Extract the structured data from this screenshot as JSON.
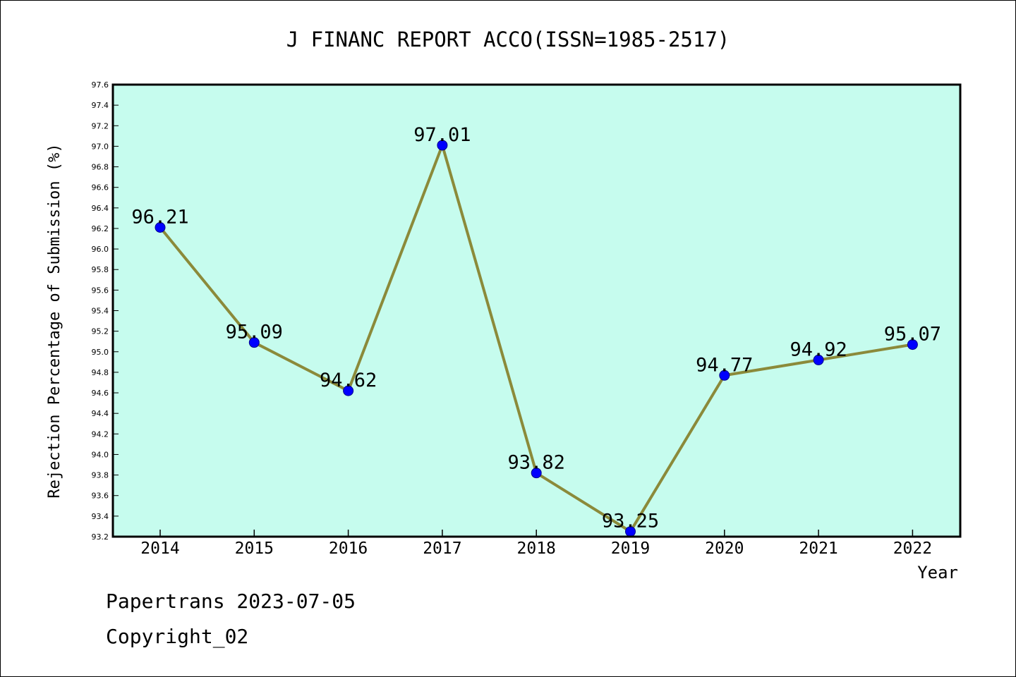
{
  "chart_data": {
    "type": "line",
    "title": "J FINANC REPORT ACCO(ISSN=1985-2517)",
    "xlabel": "Year",
    "ylabel": "Rejection Percentage of Submission (%)",
    "categories": [
      "2014",
      "2015",
      "2016",
      "2017",
      "2018",
      "2019",
      "2020",
      "2021",
      "2022"
    ],
    "values": [
      96.21,
      95.09,
      94.62,
      97.01,
      93.82,
      93.25,
      94.77,
      94.92,
      95.07
    ],
    "data_labels": [
      "96.21",
      "95.09",
      "94.62",
      "97.01",
      "93.82",
      "93.25",
      "94.77",
      "94.92",
      "95.07"
    ],
    "ylim": [
      93.2,
      97.6
    ],
    "yticks": [
      "93.2",
      "93.4",
      "93.6",
      "93.8",
      "94.0",
      "94.2",
      "94.4",
      "94.6",
      "94.8",
      "95.0",
      "95.2",
      "95.4",
      "95.6",
      "95.8",
      "96.0",
      "96.2",
      "96.4",
      "96.6",
      "96.8",
      "97.0",
      "97.2",
      "97.4",
      "97.6"
    ],
    "grid": false,
    "colors": {
      "plot_background": "#c6fcee",
      "line": "#8b8a3a",
      "marker": "#0000ff"
    }
  },
  "footer": {
    "line1": "Papertrans 2023-07-05",
    "line2": "Copyright_02"
  }
}
